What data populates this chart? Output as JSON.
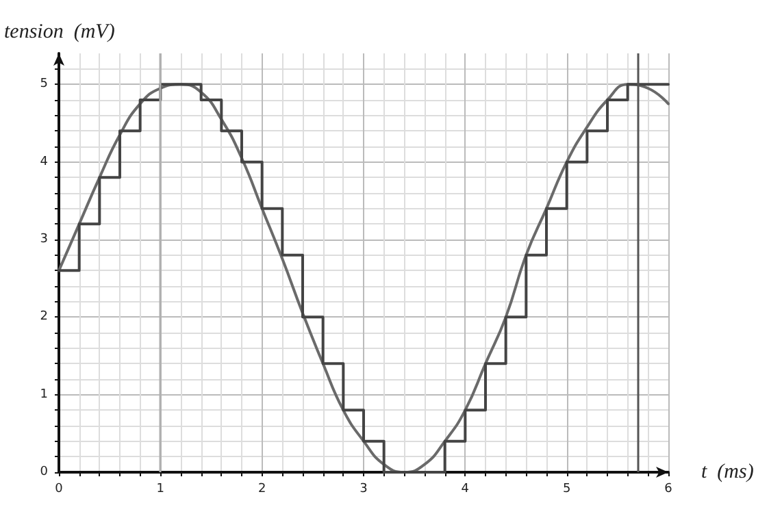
{
  "chart_data": {
    "type": "line",
    "xlabel": "t  (ms)",
    "ylabel": "tension  (mV)",
    "xlim": [
      0,
      6
    ],
    "ylim": [
      0,
      5.4
    ],
    "xticks": [
      0,
      1,
      2,
      3,
      4,
      5,
      6
    ],
    "yticks": [
      0,
      1,
      2,
      3,
      4,
      5
    ],
    "grid": true,
    "marker": "none",
    "line_style": "solid",
    "series": [
      {
        "type": "line",
        "color": "#6a6a6a",
        "x": [
          0,
          0.2,
          0.4,
          0.6,
          0.8,
          1.0,
          1.2,
          1.4,
          1.6,
          1.8,
          2.0,
          2.2,
          2.4,
          2.6,
          2.8,
          3.0,
          3.2,
          3.4,
          3.6,
          3.8,
          4.0,
          4.2,
          4.4,
          4.6,
          4.8,
          5.0,
          5.2,
          5.4,
          5.6,
          5.8,
          6.0
        ],
        "values": [
          2.6,
          3.2,
          3.8,
          4.35,
          4.75,
          4.95,
          5.0,
          4.9,
          4.55,
          4.05,
          3.4,
          2.75,
          2.05,
          1.4,
          0.8,
          0.4,
          0.1,
          0,
          0.1,
          0.4,
          0.8,
          1.4,
          2.0,
          2.8,
          3.4,
          4.0,
          4.45,
          4.8,
          5.0,
          4.95,
          4.75
        ]
      },
      {
        "type": "step",
        "color": "#444444",
        "x": [
          0,
          0.2,
          0.4,
          0.6,
          0.8,
          1.0,
          1.4,
          1.6,
          1.8,
          2.0,
          2.2,
          2.4,
          2.6,
          2.8,
          3.0,
          3.2,
          3.8,
          4.0,
          4.2,
          4.4,
          4.6,
          4.8,
          5.0,
          5.2,
          5.4,
          5.6,
          6.0
        ],
        "values": [
          2.6,
          3.2,
          3.8,
          4.4,
          4.8,
          5.0,
          4.8,
          4.4,
          4.0,
          3.4,
          2.8,
          2.0,
          1.4,
          0.8,
          0.4,
          0,
          0.4,
          0.8,
          1.4,
          2.0,
          2.8,
          3.4,
          4.0,
          4.4,
          4.8,
          5.0,
          5.0
        ]
      }
    ],
    "ref_lines": [
      {
        "axis": "x",
        "value": 1,
        "color": "#b0b0b0"
      },
      {
        "axis": "x",
        "value": 5.7,
        "color": "#555555"
      }
    ]
  }
}
